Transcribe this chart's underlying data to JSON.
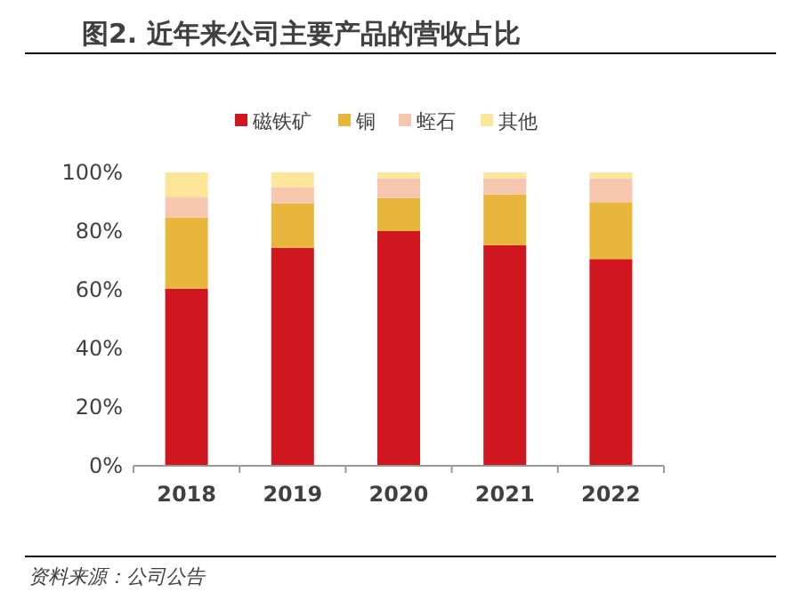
{
  "chart_data": {
    "type": "bar",
    "stacked": true,
    "title": "图2. 近年来公司主要产品的营收占比",
    "categories": [
      "2018",
      "2019",
      "2020",
      "2021",
      "2022"
    ],
    "series": [
      {
        "name": "磁铁矿",
        "color": "#d0161f",
        "values": [
          60.4,
          74.3,
          80.0,
          75.2,
          70.5
        ]
      },
      {
        "name": "铜",
        "color": "#e8b63a",
        "values": [
          24.2,
          15.2,
          11.3,
          17.3,
          19.4
        ]
      },
      {
        "name": "蛭石",
        "color": "#f6c6ae",
        "values": [
          6.9,
          5.4,
          6.7,
          5.5,
          8.1
        ]
      },
      {
        "name": "其他",
        "color": "#fde59a",
        "values": [
          8.5,
          5.1,
          2.0,
          2.0,
          2.0
        ]
      }
    ],
    "ylim": [
      0,
      100
    ],
    "yticks": [
      {
        "value": 0,
        "label": "0%"
      },
      {
        "value": 20,
        "label": "20%"
      },
      {
        "value": 40,
        "label": "40%"
      },
      {
        "value": 60,
        "label": "60%"
      },
      {
        "value": 80,
        "label": "80%"
      },
      {
        "value": 100,
        "label": "100%"
      }
    ],
    "grid": false,
    "legend": "top",
    "annotations": [
      "资料来源：公司公告"
    ]
  }
}
